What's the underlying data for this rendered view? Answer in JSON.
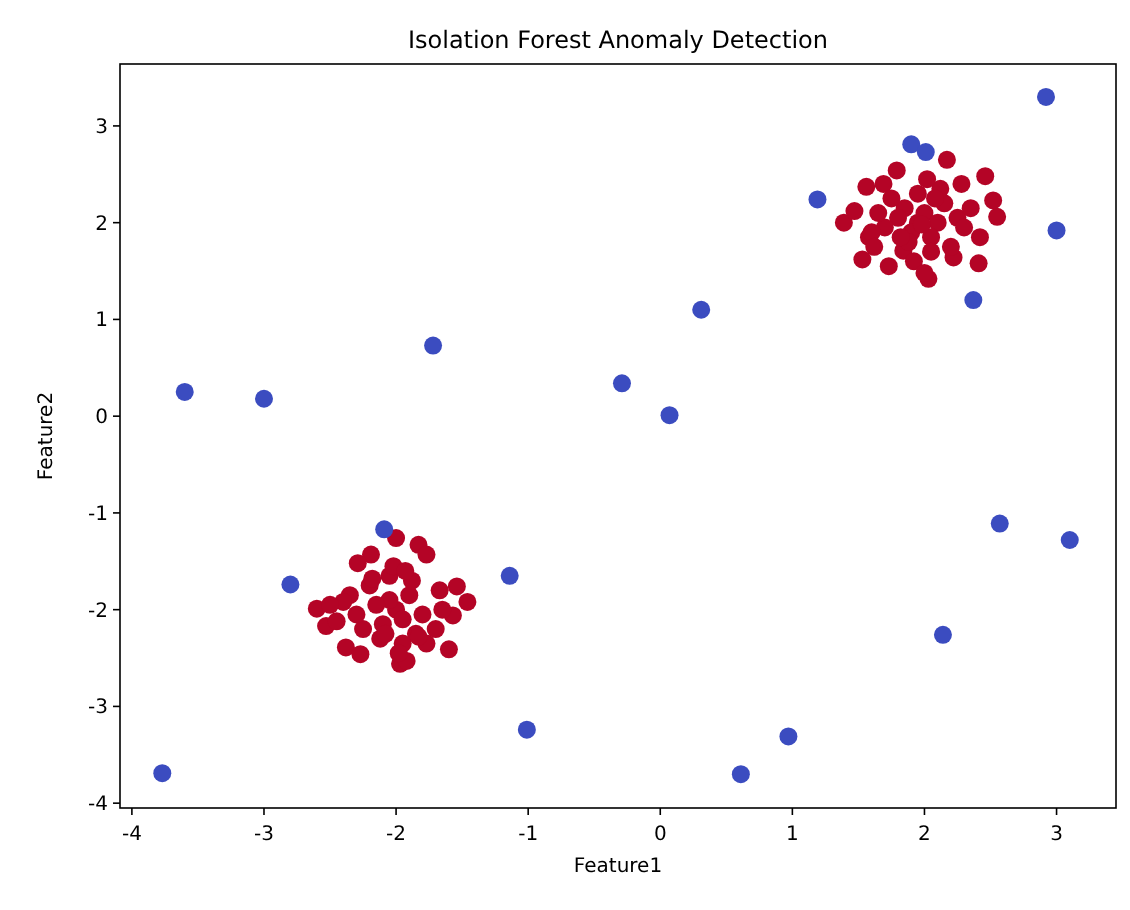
{
  "chart_data": {
    "type": "scatter",
    "title": "Isolation Forest Anomaly Detection",
    "xlabel": "Feature1",
    "ylabel": "Feature2",
    "xlim": [
      -4.09,
      3.45
    ],
    "ylim": [
      -4.05,
      3.64
    ],
    "xticks": [
      -4,
      -3,
      -2,
      -1,
      0,
      1,
      2,
      3
    ],
    "yticks": [
      -4,
      -3,
      -2,
      -1,
      0,
      1,
      2,
      3
    ],
    "grid": false,
    "marker": "circle",
    "series": [
      {
        "color": "#b40426",
        "x": [
          1.39,
          2.46,
          2.55,
          2.41,
          2.03,
          2.17,
          1.79,
          1.56,
          1.53,
          1.73,
          2.42,
          2.22,
          2.52,
          1.58,
          1.69,
          1.84,
          1.95,
          2.0,
          1.9,
          2.1,
          1.85,
          2.05,
          1.8,
          2.15,
          1.7,
          2.25,
          1.95,
          2.05,
          1.88,
          2.12,
          1.65,
          2.3,
          1.75,
          2.2,
          1.92,
          2.02,
          1.6,
          2.35,
          1.98,
          2.08,
          1.82,
          1.47,
          2.28,
          1.62,
          2.0,
          -2.0,
          -1.83,
          -1.77,
          -2.19,
          -2.29,
          -2.6,
          -2.53,
          -2.38,
          -2.27,
          -1.97,
          -1.92,
          -1.6,
          -1.57,
          -1.46,
          -1.54,
          -1.77,
          -1.67,
          -2.0,
          -2.05,
          -1.95,
          -2.1,
          -1.9,
          -2.15,
          -1.85,
          -2.2,
          -1.8,
          -2.25,
          -2.05,
          -1.95,
          -2.12,
          -1.88,
          -2.35,
          -1.7,
          -2.3,
          -2.02,
          -1.98,
          -2.4,
          -1.65,
          -2.45,
          -2.08,
          -1.93,
          -2.18,
          -1.83,
          -2.5
        ],
        "values": [
          2.0,
          2.48,
          2.06,
          1.58,
          1.42,
          2.65,
          2.54,
          2.37,
          1.62,
          1.55,
          1.85,
          1.64,
          2.23,
          1.85,
          2.4,
          1.71,
          2.0,
          2.1,
          1.9,
          2.0,
          2.15,
          1.85,
          2.05,
          2.2,
          1.95,
          2.05,
          2.3,
          1.7,
          1.8,
          2.35,
          2.1,
          1.95,
          2.25,
          1.75,
          1.6,
          2.45,
          1.9,
          2.15,
          1.98,
          2.25,
          1.85,
          2.12,
          2.4,
          1.75,
          1.48,
          -1.26,
          -1.33,
          -1.43,
          -1.43,
          -1.52,
          -1.99,
          -2.17,
          -2.39,
          -2.46,
          -2.56,
          -2.53,
          -2.41,
          -2.06,
          -1.92,
          -1.76,
          -2.35,
          -1.8,
          -2.0,
          -1.9,
          -2.1,
          -2.15,
          -1.85,
          -1.95,
          -2.25,
          -1.75,
          -2.05,
          -2.2,
          -1.65,
          -2.35,
          -2.3,
          -1.7,
          -1.85,
          -2.2,
          -2.05,
          -1.55,
          -2.45,
          -1.92,
          -2.0,
          -2.12,
          -2.25,
          -1.6,
          -1.68,
          -2.28,
          -1.95
        ]
      },
      {
        "color": "#3b4cc0",
        "x": [
          -3.6,
          -3.0,
          -1.72,
          -2.8,
          -2.09,
          -1.14,
          -1.01,
          -3.77,
          -0.29,
          0.07,
          0.31,
          1.19,
          0.61,
          0.97,
          1.9,
          2.01,
          2.37,
          2.92,
          3.0,
          2.57,
          3.1,
          2.14
        ],
        "values": [
          0.25,
          0.18,
          0.73,
          -1.74,
          -1.17,
          -1.65,
          -3.24,
          -3.69,
          0.34,
          0.01,
          1.1,
          2.24,
          -3.7,
          -3.31,
          2.81,
          2.73,
          1.2,
          3.3,
          1.92,
          -1.11,
          -1.28,
          -2.26
        ]
      }
    ]
  }
}
